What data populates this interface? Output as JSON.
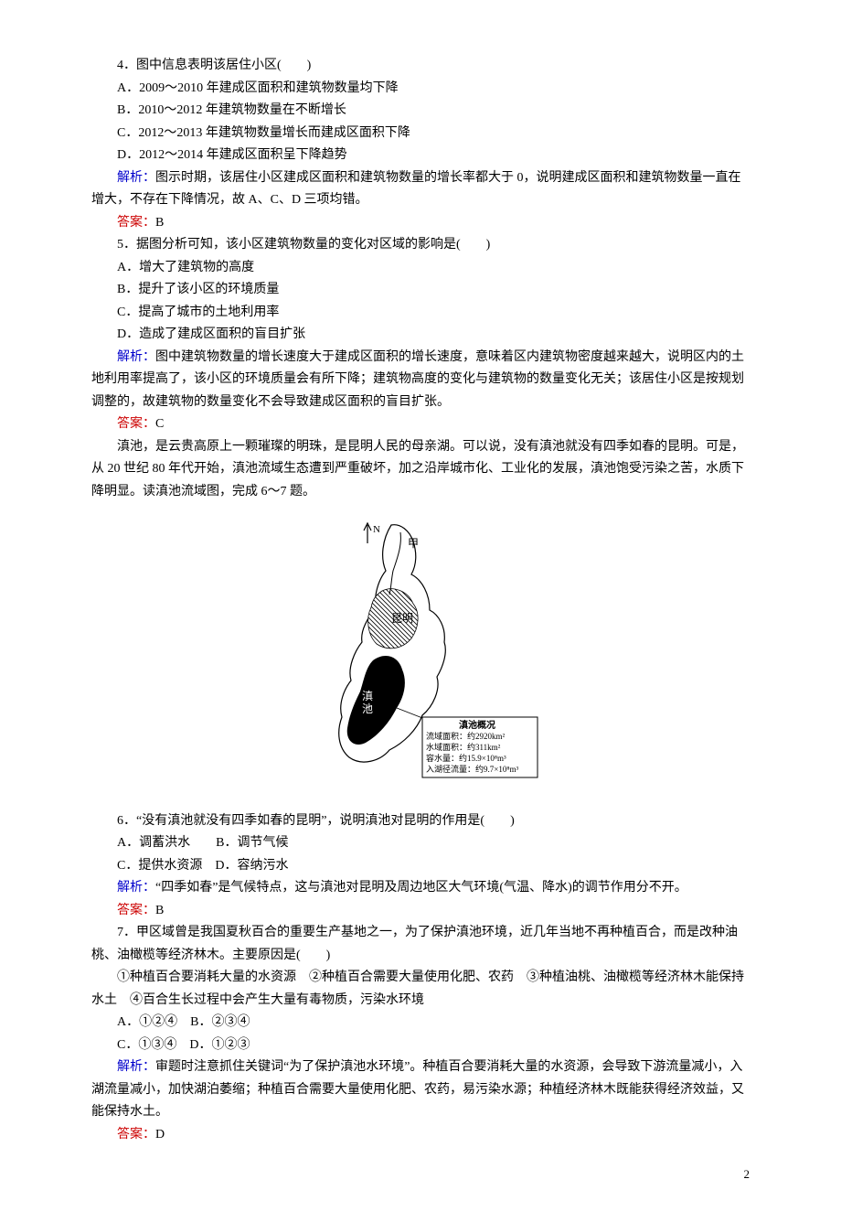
{
  "q4": {
    "stem_idx": "4．",
    "stem": "图中信息表明该居住小区(　　)",
    "A": "A．2009～2010 年建成区面积和建筑物数量均下降",
    "B": "B．2010～2012 年建筑物数量在不断增长",
    "C": "C．2012～2013 年建筑物数量增长而建成区面积下降",
    "D": "D．2012～2014 年建成区面积呈下降趋势",
    "analysis_label": "解析：",
    "analysis": "图示时期，该居住小区建成区面积和建筑物数量的增长率都大于 0，说明建成区面积和建筑物数量一直在增大，不存在下降情况，故 A、C、D 三项均错。",
    "answer_label": "答案：",
    "answer": "B"
  },
  "q5": {
    "stem_idx": "5．",
    "stem": "据图分析可知，该小区建筑物数量的变化对区域的影响是(　　)",
    "A": "A．增大了建筑物的高度",
    "B": "B．提升了该小区的环境质量",
    "C": "C．提高了城市的土地利用率",
    "D": "D．造成了建成区面积的盲目扩张",
    "analysis_label": "解析：",
    "analysis": "图中建筑物数量的增长速度大于建成区面积的增长速度，意味着区内建筑物密度越来越大，说明区内的土地利用率提高了，该小区的环境质量会有所下降；建筑物高度的变化与建筑物的数量变化无关；该居住小区是按规划调整的，故建筑物的数量变化不会导致建成区面积的盲目扩张。",
    "answer_label": "答案：",
    "answer": "C"
  },
  "passage_dianchi": "　　滇池，是云贵高原上一颗璀璨的明珠，是昆明人民的母亲湖。可以说，没有滇池就没有四季如春的昆明。可是，从 20 世纪 80 年代开始，滇池流域生态遭到严重破坏，加之沿岸城市化、工业化的发展，滇池饱受污染之苦，水质下降明显。读滇池流域图，完成 6～7 题。",
  "map": {
    "basin_outline_color": "#000000",
    "lake_fill": "#000000",
    "city_fill": "#cccccc",
    "city_hatch_color": "#000000",
    "background_color": "#ffffff",
    "info_box": {
      "title": "滇池概况",
      "lines": [
        "流域面积：约2920km²",
        "水域面积：约311km²",
        "容水量：约15.9×10⁸m³",
        "入湖径流量：约9.7×10⁸m³"
      ],
      "border_color": "#000000",
      "bg_color": "#ffffff",
      "font_size_pt": 9
    },
    "label_city": "昆明",
    "label_lake": "滇池",
    "label_river": "甲",
    "north_label": "N"
  },
  "q6": {
    "stem_idx": "6．",
    "stem": "“没有滇池就没有四季如春的昆明”，说明滇池对昆明的作用是(　　)",
    "A": "A．调蓄洪水",
    "B": "B．调节气候",
    "C": "C．提供水资源",
    "D": "D．容纳污水",
    "analysis_label": "解析：",
    "analysis": "“四季如春”是气候特点，这与滇池对昆明及周边地区大气环境(气温、降水)的调节作用分不开。",
    "answer_label": "答案：",
    "answer": "B"
  },
  "q7": {
    "stem_idx": "7．",
    "stem": "甲区域曾是我国夏秋百合的重要生产基地之一，为了保护滇池环境，近几年当地不再种植百合，而是改种油桃、油橄榄等经济林木。主要原因是(　　)",
    "choices_intro": "　　①种植百合要消耗大量的水资源　②种植百合需要大量使用化肥、农药　③种植油桃、油橄榄等经济林木能保持水土　④百合生长过程中会产生大量有毒物质，污染水环境",
    "A": "A．①②④",
    "B": "B．②③④",
    "C": "C．①③④",
    "D": "D．①②③",
    "analysis_label": "解析：",
    "analysis": "审题时注意抓住关键词“为了保护滇池水环境”。种植百合要消耗大量的水资源，会导致下游流量减小，入湖流量减小，加快湖泊萎缩；种植百合需要大量使用化肥、农药，易污染水源；种植经济林木既能获得经济效益，又能保持水土。",
    "answer_label": "答案：",
    "answer": "D"
  },
  "page_number": "2"
}
